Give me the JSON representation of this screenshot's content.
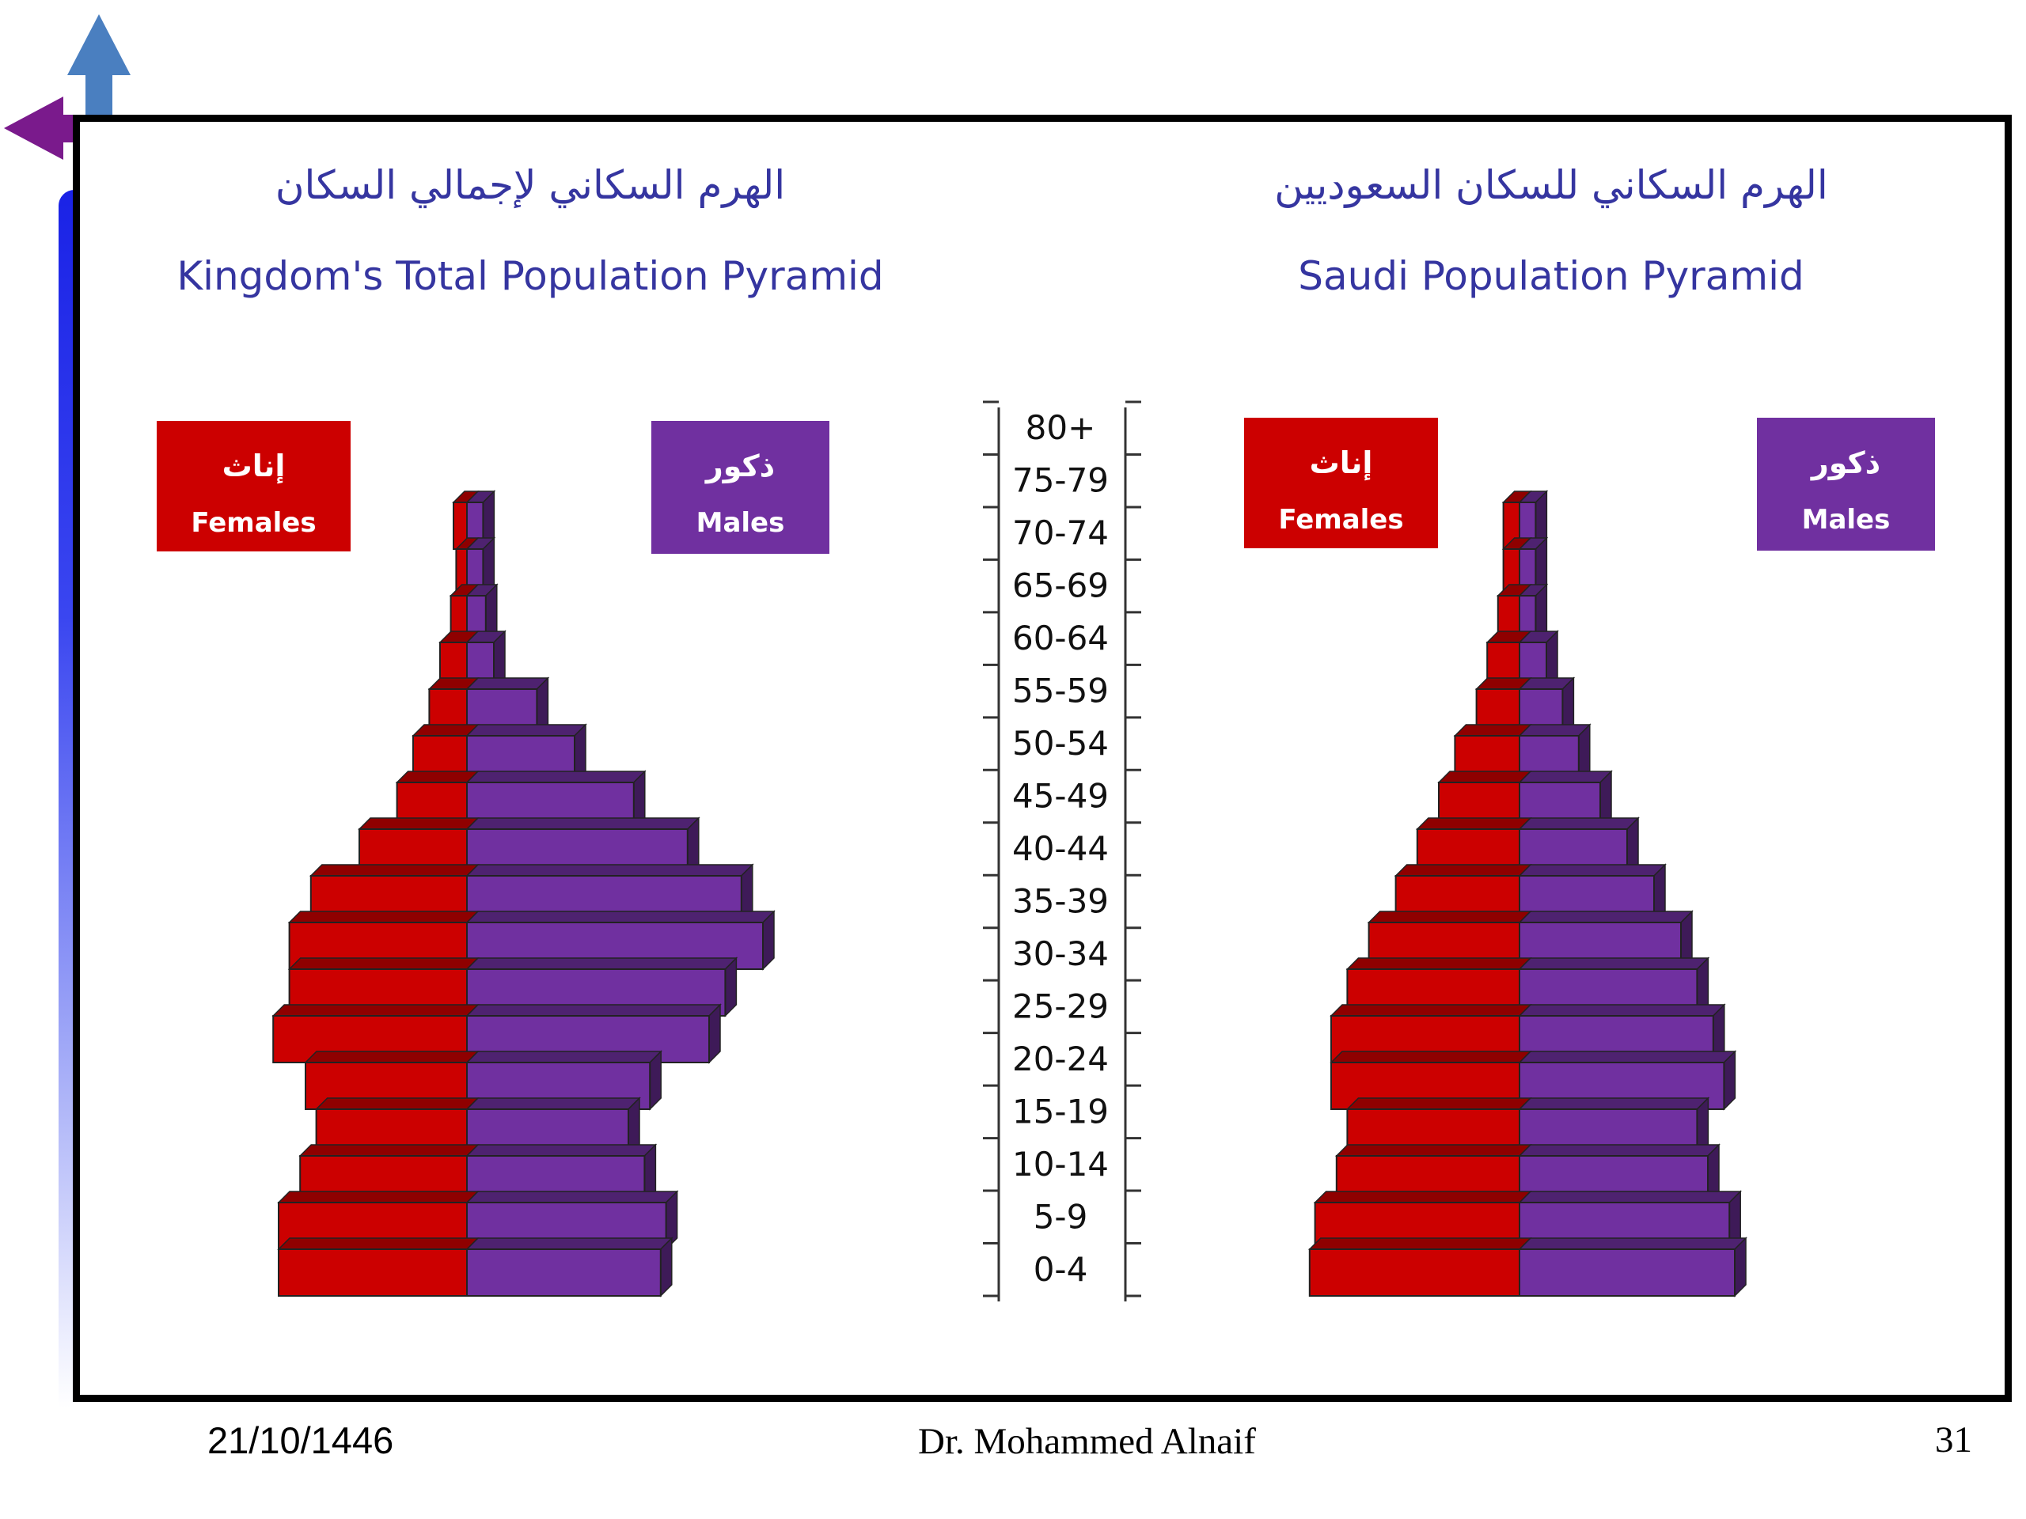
{
  "charts_meta": {
    "left": {
      "title_ar": "الهرم السكاني لإجمالي السكان",
      "title_en": "Kingdom's Total Population Pyramid"
    },
    "right": {
      "title_ar": "الهرم السكاني للسكان السعوديين",
      "title_en": "Saudi Population Pyramid"
    },
    "legend": {
      "females_ar": "إناث",
      "females_en": "Females",
      "males_ar": "ذكور",
      "males_en": "Males"
    }
  },
  "footer": {
    "date": "21/10/1446",
    "author": "Dr. Mohammed Alnaif",
    "page": "31"
  },
  "colors": {
    "female": "#cc0000",
    "male": "#7030a0",
    "title": "#3535a0"
  },
  "chart_data": [
    {
      "type": "bar",
      "orientation": "horizontal-pyramid",
      "title": "Kingdom's Total Population Pyramid",
      "categories": [
        "0-4",
        "5-9",
        "10-14",
        "15-19",
        "20-24",
        "25-29",
        "30-34",
        "35-39",
        "40-44",
        "45-49",
        "50-54",
        "55-59",
        "60-64",
        "65-69",
        "70-74",
        "75-79",
        "80+"
      ],
      "series": [
        {
          "name": "Females",
          "values": [
            3.5,
            3.5,
            3.1,
            2.8,
            3.0,
            3.6,
            3.3,
            3.3,
            2.9,
            2.0,
            1.3,
            1.0,
            0.7,
            0.5,
            0.3,
            0.2,
            0.25
          ]
        },
        {
          "name": "Males",
          "values": [
            3.6,
            3.7,
            3.3,
            3.0,
            3.4,
            4.5,
            4.8,
            5.5,
            5.1,
            4.1,
            3.1,
            2.0,
            1.3,
            0.5,
            0.35,
            0.3,
            0.3
          ]
        }
      ]
    },
    {
      "type": "bar",
      "orientation": "horizontal-pyramid",
      "title": "Saudi Population Pyramid",
      "categories": [
        "0-4",
        "5-9",
        "10-14",
        "15-19",
        "20-24",
        "25-29",
        "30-34",
        "35-39",
        "40-44",
        "45-49",
        "50-54",
        "55-59",
        "60-64",
        "65-69",
        "70-74",
        "75-79",
        "80+"
      ],
      "series": [
        {
          "name": "Females",
          "values": [
            3.9,
            3.8,
            3.4,
            3.2,
            3.5,
            3.5,
            3.2,
            2.8,
            2.3,
            1.9,
            1.5,
            1.2,
            0.8,
            0.6,
            0.4,
            0.3,
            0.3
          ]
        },
        {
          "name": "Males",
          "values": [
            4.0,
            3.9,
            3.5,
            3.3,
            3.8,
            3.6,
            3.3,
            3.0,
            2.5,
            2.0,
            1.5,
            1.1,
            0.8,
            0.5,
            0.3,
            0.3,
            0.3
          ]
        }
      ]
    }
  ]
}
